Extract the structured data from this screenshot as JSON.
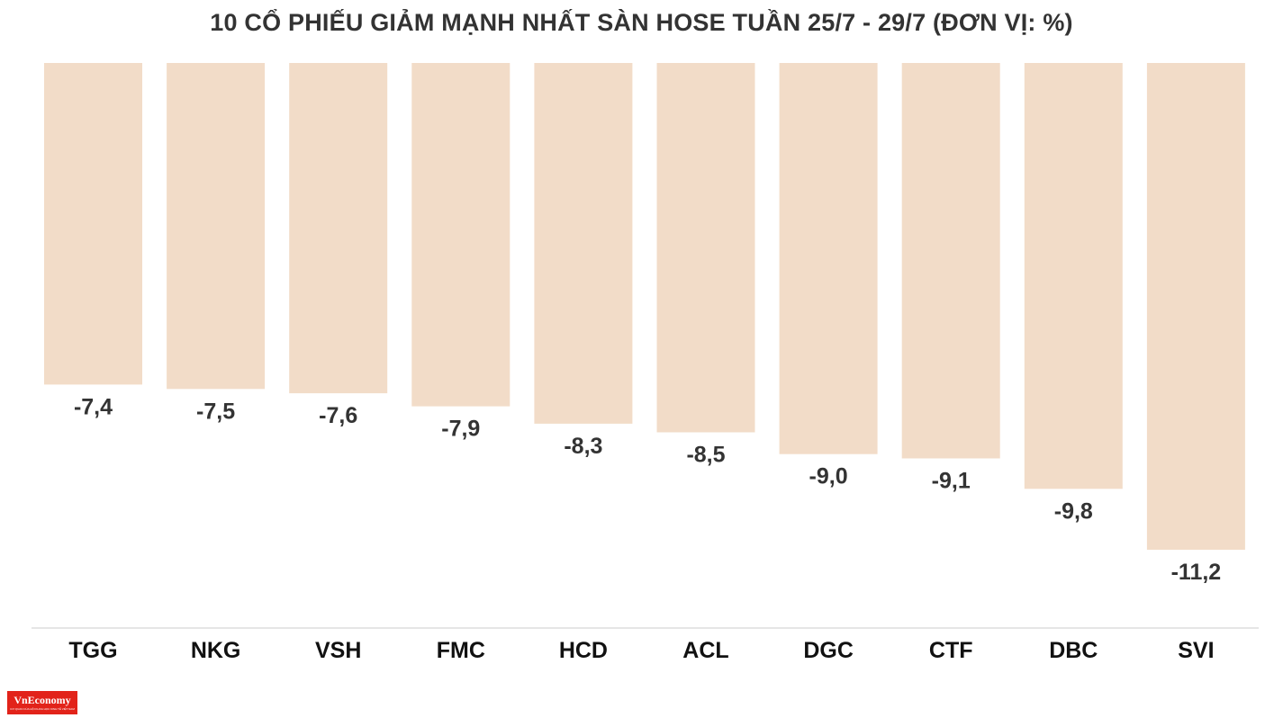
{
  "chart_data": {
    "type": "bar",
    "title": "10 CỔ PHIẾU GIẢM MẠNH NHẤT SÀN HOSE TUẦN 25/7 - 29/7 (ĐƠN VỊ: %)",
    "xlabel": "",
    "ylabel": "",
    "categories": [
      "TGG",
      "NKG",
      "VSH",
      "FMC",
      "HCD",
      "ACL",
      "DGC",
      "CTF",
      "DBC",
      "SVI"
    ],
    "values": [
      -7.4,
      -7.5,
      -7.6,
      -7.9,
      -8.3,
      -8.5,
      -9.0,
      -9.1,
      -9.8,
      -11.2
    ],
    "value_labels": [
      "-7,4",
      "-7,5",
      "-7,6",
      "-7,9",
      "-8,3",
      "-8,5",
      "-9,0",
      "-9,1",
      "-9,8",
      "-11,2"
    ],
    "ylim": [
      -11.2,
      0
    ],
    "grid": false,
    "legend": "none",
    "bar_color": "#f2dcc8",
    "label_color": "#333333",
    "axis_color": "#dddddd"
  },
  "logo": {
    "name": "VnEconomy",
    "tagline": "CƠ QUAN CỦA HỘI KHOA HỌC KINH TẾ VIỆT NAM"
  }
}
